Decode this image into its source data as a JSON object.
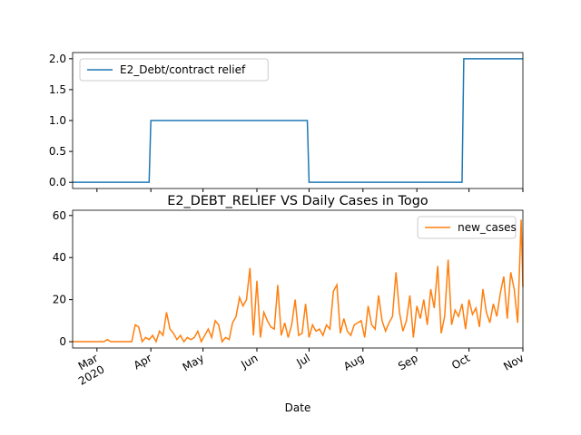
{
  "chart_data": [
    {
      "type": "line",
      "x": [
        -14,
        30,
        31,
        121,
        122,
        210,
        211,
        245
      ],
      "series": [
        {
          "name": "E2_Debt/contract relief",
          "color": "#1f77b4",
          "values": [
            0,
            0,
            1,
            1,
            0,
            0,
            2,
            2
          ]
        }
      ],
      "xlim": [
        -14,
        245
      ],
      "ylim": [
        -0.1,
        2.1
      ],
      "yticks": [
        {
          "value": 0,
          "label": "0.0"
        },
        {
          "value": 0.5,
          "label": "0.5"
        },
        {
          "value": 1,
          "label": "1.0"
        },
        {
          "value": 1.5,
          "label": "1.5"
        },
        {
          "value": 2,
          "label": "2.0"
        }
      ],
      "legend": "upper left"
    },
    {
      "type": "line",
      "title": "E2_DEBT_RELIEF VS Daily Cases in Togo",
      "xlabel": "Date",
      "x": [
        -14,
        -12,
        -10,
        -8,
        -6,
        -4,
        -2,
        0,
        2,
        4,
        6,
        8,
        10,
        12,
        14,
        16,
        18,
        20,
        22,
        24,
        26,
        28,
        30,
        32,
        34,
        36,
        38,
        40,
        42,
        44,
        46,
        48,
        50,
        52,
        54,
        56,
        58,
        60,
        62,
        64,
        66,
        68,
        70,
        72,
        74,
        76,
        78,
        80,
        82,
        84,
        86,
        88,
        90,
        92,
        94,
        96,
        98,
        100,
        102,
        104,
        106,
        108,
        110,
        112,
        114,
        116,
        118,
        120,
        122,
        124,
        126,
        128,
        130,
        132,
        134,
        136,
        138,
        140,
        142,
        144,
        146,
        148,
        150,
        152,
        154,
        156,
        158,
        160,
        162,
        164,
        166,
        168,
        170,
        172,
        174,
        176,
        178,
        180,
        182,
        184,
        186,
        188,
        190,
        192,
        194,
        196,
        198,
        200,
        202,
        204,
        206,
        208,
        210,
        212,
        214,
        216,
        218,
        220,
        222,
        224,
        226,
        228,
        230,
        232,
        234,
        236,
        238,
        240,
        242,
        244,
        245
      ],
      "series": [
        {
          "name": "new_cases",
          "color": "#ff7f0e",
          "values": [
            0,
            0,
            0,
            0,
            0,
            0,
            0,
            0,
            0,
            0,
            1,
            0,
            0,
            0,
            0,
            0,
            0,
            0,
            8,
            7,
            0,
            2,
            1,
            3,
            0,
            5,
            3,
            14,
            6,
            4,
            1,
            3,
            0,
            2,
            1,
            2,
            5,
            0,
            3,
            6,
            2,
            10,
            8,
            0,
            2,
            1,
            9,
            12,
            21,
            17,
            20,
            35,
            3,
            29,
            2,
            14,
            10,
            7,
            6,
            27,
            3,
            9,
            2,
            8,
            20,
            3,
            4,
            18,
            2,
            8,
            5,
            6,
            3,
            8,
            6,
            24,
            27,
            4,
            11,
            5,
            3,
            8,
            9,
            10,
            2,
            17,
            8,
            6,
            22,
            10,
            5,
            9,
            12,
            33,
            14,
            5,
            10,
            22,
            2,
            17,
            11,
            20,
            8,
            25,
            16,
            36,
            4,
            12,
            39,
            8,
            15,
            12,
            18,
            6,
            20,
            13,
            16,
            7,
            25,
            14,
            9,
            18,
            12,
            23,
            31,
            11,
            33,
            25,
            9,
            58,
            26
          ]
        }
      ],
      "xlim": [
        -14,
        245
      ],
      "xticks": [
        {
          "value": 0,
          "label": "Mar\n2020"
        },
        {
          "value": 31,
          "label": "Apr"
        },
        {
          "value": 61,
          "label": "May"
        },
        {
          "value": 92,
          "label": "Jun"
        },
        {
          "value": 122,
          "label": "Jul"
        },
        {
          "value": 153,
          "label": "Aug"
        },
        {
          "value": 184,
          "label": "Sep"
        },
        {
          "value": 214,
          "label": "Oct"
        },
        {
          "value": 245,
          "label": "Nov"
        }
      ],
      "ylim": [
        -3,
        62.5
      ],
      "yticks": [
        0,
        20,
        40,
        60
      ],
      "legend": "upper right"
    }
  ]
}
